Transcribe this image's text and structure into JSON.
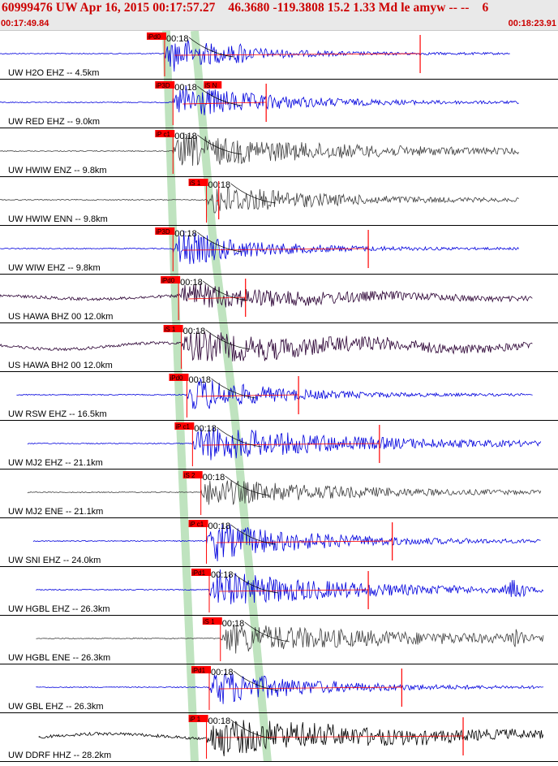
{
  "header": {
    "title": "60999476 UW Apr 16, 2015 00:17:57.27    46.3680 -119.3808 15.2 1.33 Md le amyw -- --    6",
    "start_time": "00:17:49.84",
    "end_time": "00:18:23.91"
  },
  "colors": {
    "header_text": "#cc0000",
    "pick_box": "#ff0000",
    "moveout_band": "#bfe3bf",
    "trace_blue": "#0000dd",
    "trace_gray": "#404040",
    "trace_purple": "#2a0033",
    "trace_black": "#000000"
  },
  "traces": [
    {
      "label": "UW H2O EHZ -- 4.5km",
      "time_label": "00:18",
      "pick": "iPd0",
      "color": "blue",
      "start": 0.0,
      "end": 0.915,
      "onset": 0.295,
      "amp": 1.0,
      "tail": 0.08,
      "pulse": 0.43,
      "stem": 0.753
    },
    {
      "label": "UW RED EHZ -- 9.0km",
      "time_label": "00:18",
      "pick": "iP3D",
      "color": "blue",
      "start": 0.0,
      "end": 0.93,
      "onset": 0.31,
      "amp": 1.0,
      "tail": 0.12,
      "pulse": 0.0,
      "stem": 0.477,
      "s_pick": "iS N"
    },
    {
      "label": "UW HWIW ENZ -- 9.8km",
      "time_label": "00:18",
      "pick": "iP c1",
      "color": "gray",
      "start": 0.0,
      "end": 0.93,
      "onset": 0.31,
      "amp": 0.9,
      "tail": 0.25,
      "pulse": 0.0,
      "stem": 0.0
    },
    {
      "label": "UW HWIW ENN -- 9.8km",
      "time_label": "00:18",
      "pick": "iS 1",
      "color": "gray",
      "start": 0.0,
      "end": 0.93,
      "onset": 0.37,
      "amp": 0.85,
      "tail": 0.15,
      "pulse": 0.0,
      "stem": 0.392
    },
    {
      "label": "UW WIW EHZ -- 9.8km",
      "time_label": "00:18",
      "pick": "iP3D",
      "color": "blue",
      "start": 0.0,
      "end": 0.93,
      "onset": 0.31,
      "amp": 1.0,
      "tail": 0.1,
      "pulse": 0.0,
      "stem": 0.66
    },
    {
      "label": "US HAWA BHZ 00 12.0km",
      "time_label": "00:18",
      "pick": "iPd0",
      "color": "purple",
      "start": 0.0,
      "end": 0.955,
      "onset": 0.32,
      "amp": 0.7,
      "tail": 0.25,
      "pulse": 0.0,
      "stem": 0.44,
      "wave": 0.25
    },
    {
      "label": "US HAWA BH2 00 12.0km",
      "time_label": "00:18",
      "pick": "iS 1",
      "color": "purple",
      "start": 0.0,
      "end": 0.955,
      "onset": 0.325,
      "amp": 0.85,
      "tail": 0.3,
      "pulse": 0.0,
      "stem": 0.0,
      "wave": 0.5
    },
    {
      "label": "UW RSW EHZ -- 16.5km",
      "time_label": "00:18",
      "pick": "iPd0",
      "color": "blue",
      "start": 0.03,
      "end": 0.955,
      "onset": 0.335,
      "amp": 1.0,
      "tail": 0.1,
      "pulse": 0.0,
      "stem": 0.535
    },
    {
      "label": "UW MJ2 EHZ -- 21.1km",
      "time_label": "00:18",
      "pick": "iP c1",
      "color": "blue",
      "start": 0.05,
      "end": 0.97,
      "onset": 0.345,
      "amp": 1.0,
      "tail": 0.22,
      "pulse": 0.0,
      "stem": 0.68
    },
    {
      "label": "UW MJ2 ENE -- 21.1km",
      "time_label": "00:18",
      "pick": "iS 2",
      "color": "gray",
      "start": 0.05,
      "end": 0.97,
      "onset": 0.36,
      "amp": 0.75,
      "tail": 0.2,
      "pulse": 0.0,
      "stem": 0.0
    },
    {
      "label": "UW SNI EHZ -- 24.0km",
      "time_label": "00:18",
      "pick": "iP c1",
      "color": "blue",
      "start": 0.06,
      "end": 0.97,
      "onset": 0.37,
      "amp": 1.0,
      "tail": 0.15,
      "pulse": 0.0,
      "stem": 0.703
    },
    {
      "label": "UW HGBL EHZ -- 26.3km",
      "time_label": "00:18",
      "pick": "iPd1",
      "color": "blue",
      "start": 0.065,
      "end": 0.975,
      "onset": 0.375,
      "amp": 1.0,
      "tail": 0.2,
      "pulse": 0.925,
      "stem": 0.66
    },
    {
      "label": "UW HGBL ENE -- 26.3km",
      "time_label": "00:18",
      "pick": "iS 1",
      "color": "gray",
      "start": 0.065,
      "end": 0.975,
      "onset": 0.395,
      "amp": 0.8,
      "tail": 0.3,
      "pulse": 0.925,
      "stem": 0.0
    },
    {
      "label": "UW GBL EHZ -- 26.3km",
      "time_label": "00:18",
      "pick": "iPd1",
      "color": "blue",
      "start": 0.065,
      "end": 0.975,
      "onset": 0.375,
      "amp": 1.0,
      "tail": 0.12,
      "pulse": 0.0,
      "stem": 0.72
    },
    {
      "label": "UW DDRF HHZ -- 28.2km",
      "time_label": "00:18",
      "pick": "iP 1",
      "color": "black",
      "start": 0.07,
      "end": 0.975,
      "onset": 0.37,
      "amp": 1.0,
      "tail": 0.3,
      "pulse": 0.0,
      "stem": 0.83,
      "wave": 0.35
    }
  ]
}
